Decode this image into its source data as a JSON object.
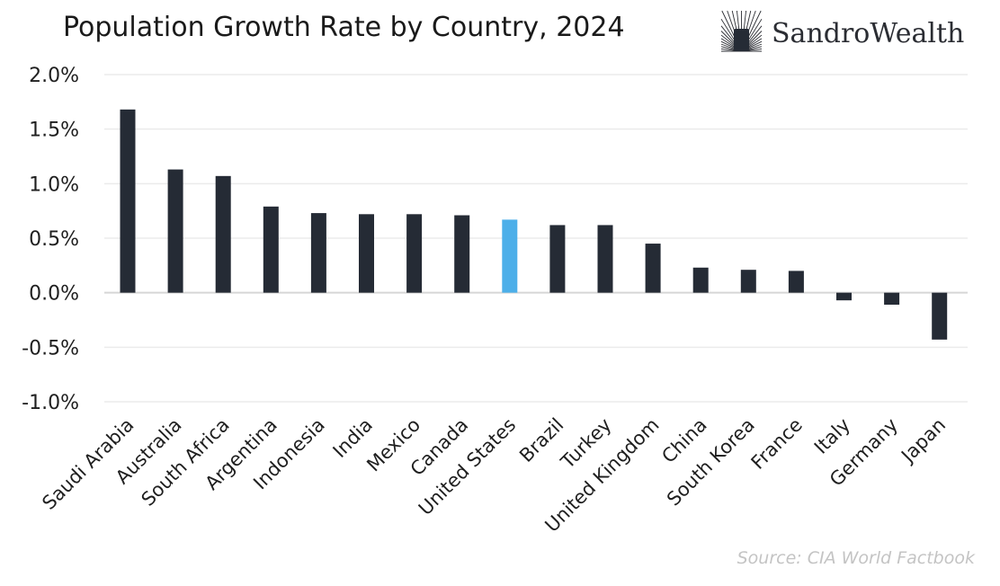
{
  "brand": {
    "name": "SandroWealth",
    "logo_icon": "sunburst-logo-icon"
  },
  "chart_data": {
    "type": "bar",
    "title": "Population Growth Rate by Country, 2024",
    "xlabel": "",
    "ylabel": "",
    "ylim": [
      -1.0,
      2.0
    ],
    "yticks": [
      2.0,
      1.5,
      1.0,
      0.5,
      0.0,
      -0.5,
      -1.0
    ],
    "ytick_labels": [
      "2.0%",
      "1.5%",
      "1.0%",
      "0.5%",
      "0.0%",
      "-0.5%",
      "-1.0%"
    ],
    "grid": true,
    "legend": "none",
    "categories": [
      "Saudi Arabia",
      "Australia",
      "South Africa",
      "Argentina",
      "Indonesia",
      "India",
      "Mexico",
      "Canada",
      "United States",
      "Brazil",
      "Turkey",
      "United Kingdom",
      "China",
      "South Korea",
      "France",
      "Italy",
      "Germany",
      "Japan"
    ],
    "values": [
      1.68,
      1.13,
      1.07,
      0.79,
      0.73,
      0.72,
      0.72,
      0.71,
      0.67,
      0.62,
      0.62,
      0.45,
      0.23,
      0.21,
      0.2,
      -0.07,
      -0.11,
      -0.43
    ],
    "units": "%",
    "highlight_category": "United States",
    "colors": {
      "bar": "#252b35",
      "highlight": "#4dafe9",
      "grid": "#ebebeb",
      "zero_line": "#d6d6d6"
    },
    "source": "Source: CIA World Factbook"
  }
}
